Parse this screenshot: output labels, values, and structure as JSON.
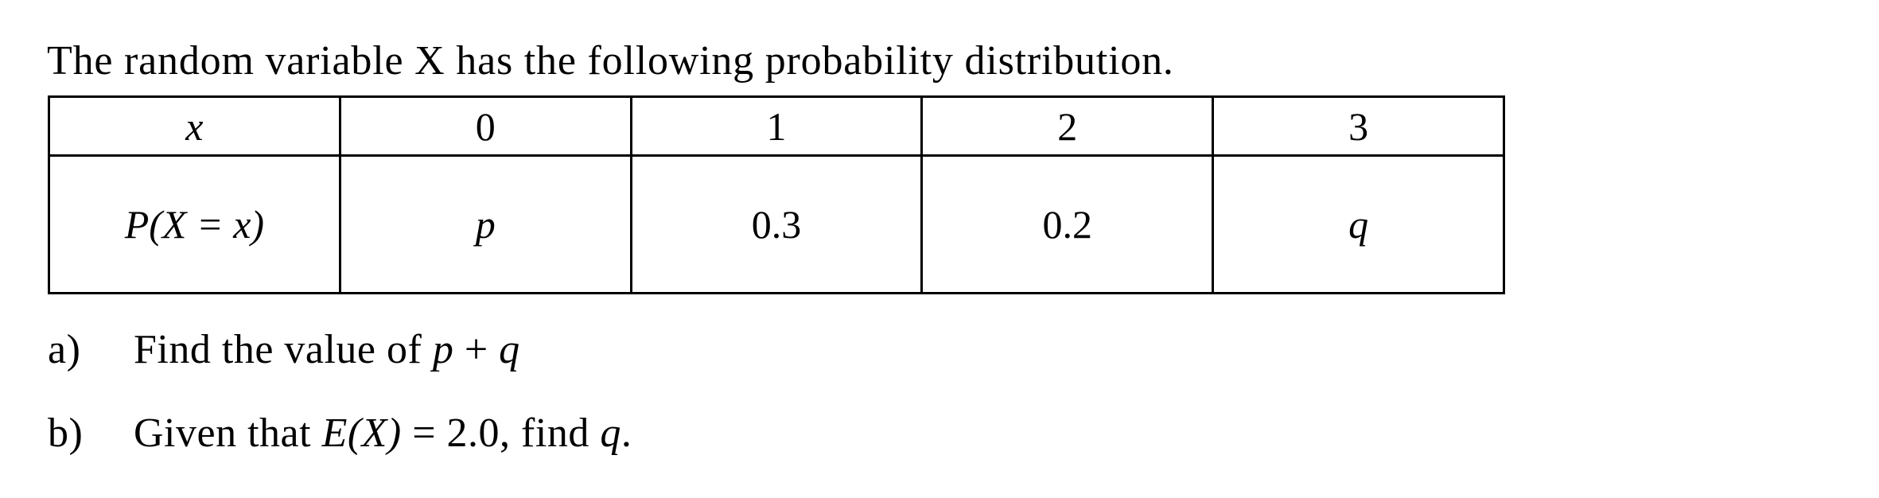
{
  "colors": {
    "background": "#ffffff",
    "text": "#000000",
    "table_border": "#000000"
  },
  "problem": {
    "intro": "The random variable X has the following probability distribution.",
    "table": {
      "variable_label": "x",
      "x_values": [
        "0",
        "1",
        "2",
        "3"
      ],
      "probability_label": "P(X = x)",
      "probabilities": [
        "p",
        "0.3",
        "0.2",
        "q"
      ]
    }
  },
  "parts": {
    "a": {
      "label": "a)",
      "text": "Find the value of ",
      "var_p": "p",
      "operator": " + ",
      "var_q": "q"
    },
    "b": {
      "label": "b)",
      "pre": "Given that ",
      "expectation": "E(X)",
      "mid": " = 2.0, find ",
      "var_q": "q",
      "end": "."
    }
  }
}
